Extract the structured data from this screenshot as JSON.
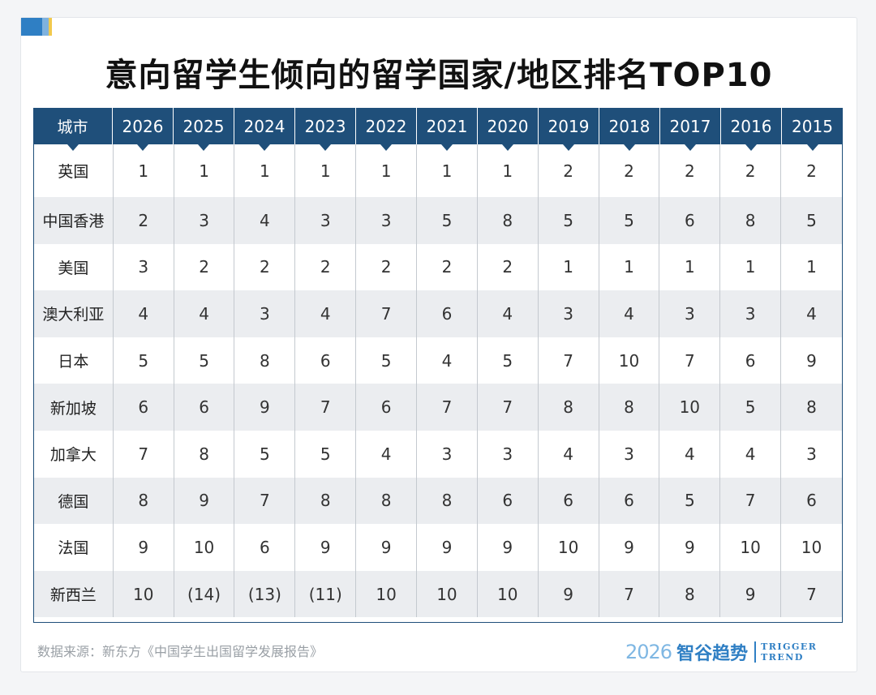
{
  "title": "意向留学生倾向的留学国家/地区排名TOP10",
  "source": "数据来源：新东方《中国学生出国留学发展报告》",
  "brand": {
    "year": "2026",
    "name_cn": "智谷趋势",
    "name_en_1": "TRIGGER",
    "name_en_2": "TREND"
  },
  "colors": {
    "header_bg": "#1f4f7a",
    "alt_row": "#ebedf0",
    "brand": "#2f7fc4"
  },
  "chart_data": {
    "type": "table",
    "columns": [
      "城市",
      "2026",
      "2025",
      "2024",
      "2023",
      "2022",
      "2021",
      "2020",
      "2019",
      "2018",
      "2017",
      "2016",
      "2015"
    ],
    "rows": [
      [
        "英国",
        "1",
        "1",
        "1",
        "1",
        "1",
        "1",
        "1",
        "2",
        "2",
        "2",
        "2",
        "2"
      ],
      [
        "中国香港",
        "2",
        "3",
        "4",
        "3",
        "3",
        "5",
        "8",
        "5",
        "5",
        "6",
        "8",
        "5"
      ],
      [
        "美国",
        "3",
        "2",
        "2",
        "2",
        "2",
        "2",
        "2",
        "1",
        "1",
        "1",
        "1",
        "1"
      ],
      [
        "澳大利亚",
        "4",
        "4",
        "3",
        "4",
        "7",
        "6",
        "4",
        "3",
        "4",
        "3",
        "3",
        "4"
      ],
      [
        "日本",
        "5",
        "5",
        "8",
        "6",
        "5",
        "4",
        "5",
        "7",
        "10",
        "7",
        "6",
        "9"
      ],
      [
        "新加坡",
        "6",
        "6",
        "9",
        "7",
        "6",
        "7",
        "7",
        "8",
        "8",
        "10",
        "5",
        "8"
      ],
      [
        "加拿大",
        "7",
        "8",
        "5",
        "5",
        "4",
        "3",
        "3",
        "4",
        "3",
        "4",
        "4",
        "3"
      ],
      [
        "德国",
        "8",
        "9",
        "7",
        "8",
        "8",
        "8",
        "6",
        "6",
        "6",
        "5",
        "7",
        "6"
      ],
      [
        "法国",
        "9",
        "10",
        "6",
        "9",
        "9",
        "9",
        "9",
        "10",
        "9",
        "9",
        "10",
        "10"
      ],
      [
        "新西兰",
        "10",
        "(14)",
        "(13)",
        "(11)",
        "10",
        "10",
        "10",
        "9",
        "7",
        "8",
        "9",
        "7"
      ]
    ]
  }
}
